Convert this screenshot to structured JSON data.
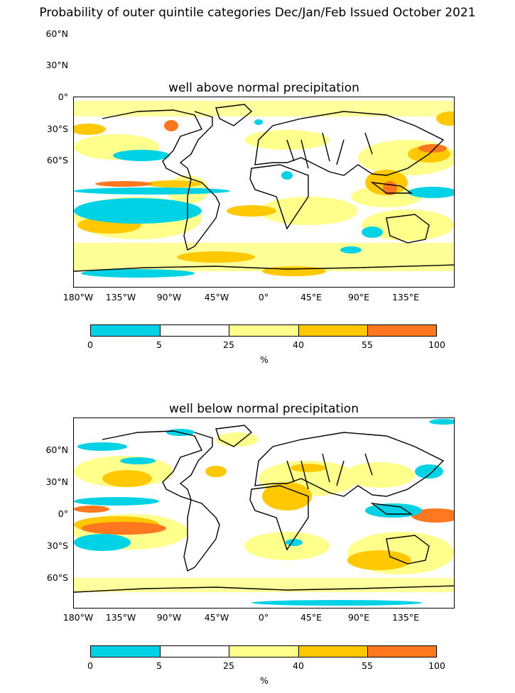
{
  "title": "Probability of outer quintile categories Dec/Jan/Feb Issued October 2021",
  "lat_ticks": [
    "60°N",
    "30°N",
    "0°",
    "30°S",
    "60°S"
  ],
  "lon_ticks": [
    "180°W",
    "135°W",
    "90°W",
    "45°W",
    "0°",
    "45°E",
    "90°E",
    "135°E"
  ],
  "colorbar": {
    "boundaries": [
      "0",
      "5",
      "25",
      "40",
      "55",
      "100"
    ],
    "colors": [
      "#00d2e6",
      "#ffffff",
      "#ffff8c",
      "#ffc800",
      "#ff7820"
    ],
    "unit": "%"
  },
  "panels": [
    {
      "title": "well above normal precipitation"
    },
    {
      "title": "well below normal precipitation"
    }
  ],
  "colors": {
    "cyan": "#00d2e6",
    "light_yellow": "#ffff8c",
    "gold": "#ffc800",
    "orange": "#ff7820",
    "coastline": "#000000"
  }
}
